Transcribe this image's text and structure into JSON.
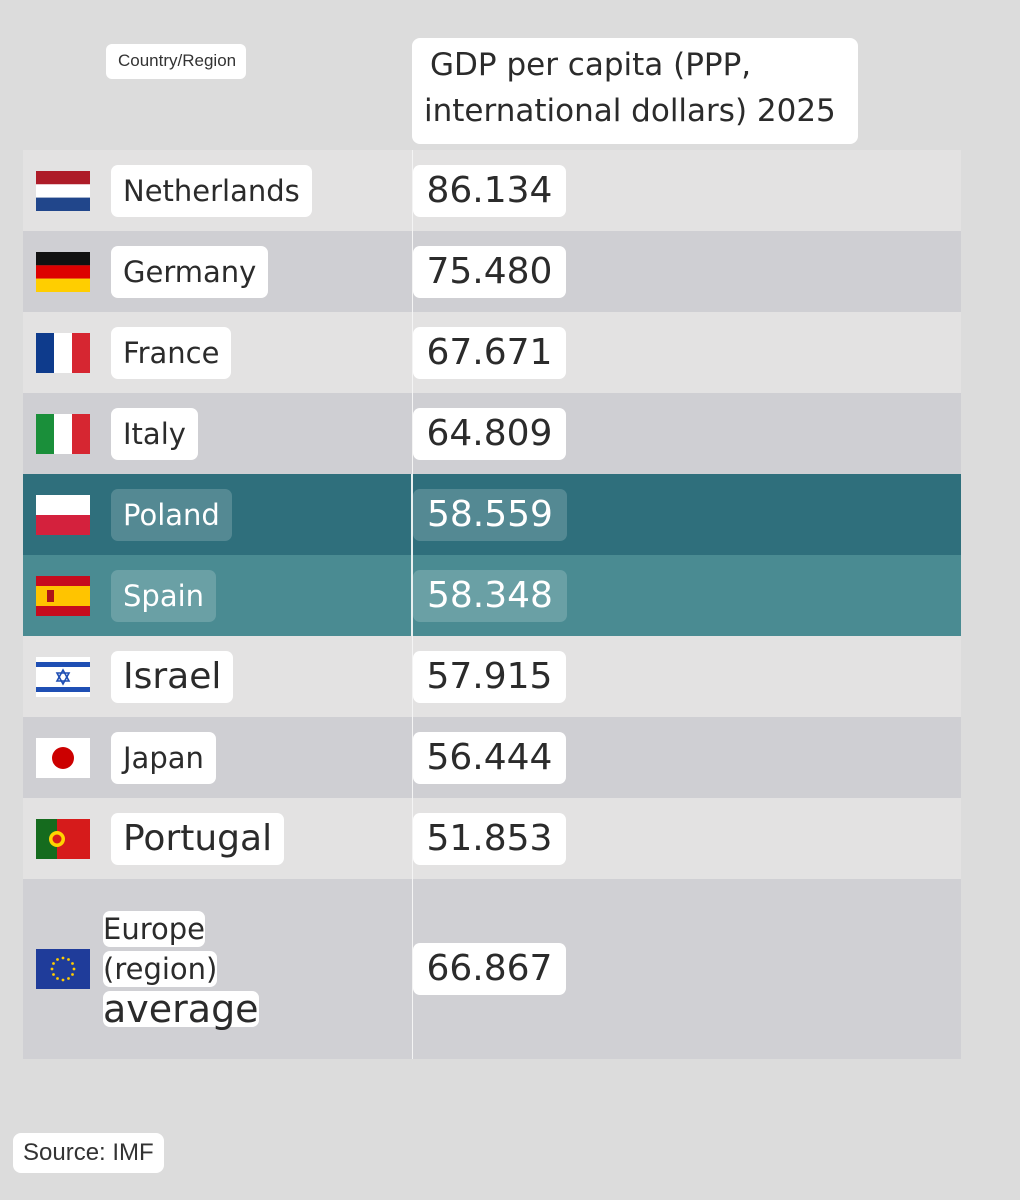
{
  "header": {
    "country_label": "Country/Region",
    "value_label_line1": "GDP per capita (PPP,",
    "value_label_line2": "international dollars) 2025"
  },
  "chart_data": {
    "type": "table",
    "columns": [
      "Country/Region",
      "GDP per capita (PPP, international dollars) 2025"
    ],
    "rows": [
      {
        "name": "Netherlands",
        "value": "86.134",
        "flag": "netherlands-flag-icon",
        "style": "odd"
      },
      {
        "name": "Germany",
        "value": "75.480",
        "flag": "germany-flag-icon",
        "style": "even"
      },
      {
        "name": "France",
        "value": "67.671",
        "flag": "france-flag-icon",
        "style": "odd"
      },
      {
        "name": "Italy",
        "value": "64.809",
        "flag": "italy-flag-icon",
        "style": "even"
      },
      {
        "name": "Poland",
        "value": "58.559",
        "flag": "poland-flag-icon",
        "style": "hl1",
        "highlight_color": "#2f6f7c"
      },
      {
        "name": "Spain",
        "value": "58.348",
        "flag": "spain-flag-icon",
        "style": "hl2",
        "highlight_color": "#4a8b92"
      },
      {
        "name": "Israel",
        "value": "57.915",
        "flag": "israel-flag-icon",
        "style": "odd"
      },
      {
        "name": "Japan",
        "value": "56.444",
        "flag": "japan-flag-icon",
        "style": "even"
      },
      {
        "name": "Portugal",
        "value": "51.853",
        "flag": "portugal-flag-icon",
        "style": "odd"
      }
    ],
    "average": {
      "name_lines": [
        "Europe",
        "(region)",
        "average"
      ],
      "value": "66.867",
      "flag": "eu-flag-icon"
    }
  },
  "footer": {
    "source": "Source: IMF"
  }
}
